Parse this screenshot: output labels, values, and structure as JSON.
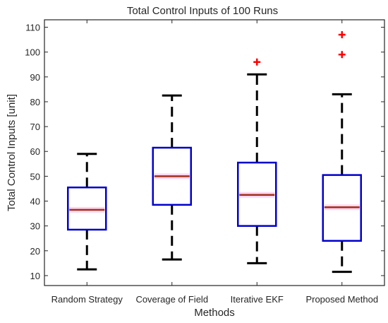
{
  "chart_data": {
    "type": "box",
    "title": "Total Control Inputs of 100 Runs",
    "xlabel": "Methods",
    "ylabel": "Total Control Inputs [unit]",
    "ylim": [
      6,
      113
    ],
    "yticks": [
      10,
      20,
      30,
      40,
      50,
      60,
      70,
      80,
      90,
      100,
      110
    ],
    "categories": [
      "Random Strategy",
      "Coverage of Field",
      "Iterative EKF",
      "Proposed Method"
    ],
    "boxes": [
      {
        "whisker_low": 12.5,
        "q1": 28.5,
        "median": 36.5,
        "q3": 45.5,
        "whisker_high": 59,
        "outliers": []
      },
      {
        "whisker_low": 16.5,
        "q1": 38.5,
        "median": 50,
        "q3": 61.5,
        "whisker_high": 82.5,
        "outliers": []
      },
      {
        "whisker_low": 15,
        "q1": 30,
        "median": 42.5,
        "q3": 55.5,
        "whisker_high": 91,
        "outliers": [
          96
        ]
      },
      {
        "whisker_low": 11.5,
        "q1": 24,
        "median": 37.5,
        "q3": 50.5,
        "whisker_high": 83,
        "outliers": [
          99,
          107
        ]
      }
    ],
    "colors": {
      "box": "#0000cc",
      "whisker": "#000000",
      "median": "#a0301a",
      "median_notch": "#ffccee",
      "outlier": "#ff0000"
    },
    "grid": false,
    "legend": "none"
  }
}
